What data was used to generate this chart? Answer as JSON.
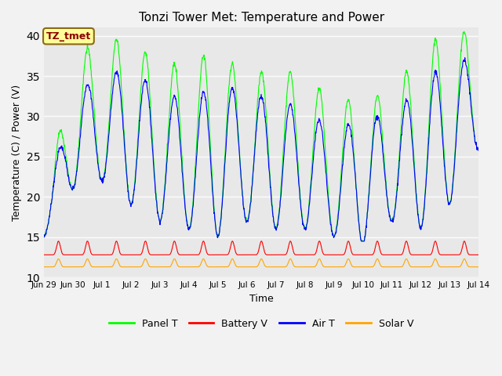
{
  "title": "Tonzi Tower Met: Temperature and Power",
  "xlabel": "Time",
  "ylabel": "Temperature (C) / Power (V)",
  "ylim": [
    10,
    41
  ],
  "yticks": [
    10,
    15,
    20,
    25,
    30,
    35,
    40
  ],
  "annotation_text": "TZ_tmet",
  "annotation_color": "#8B0000",
  "annotation_bg": "#FFFF99",
  "panel_t_color": "#00FF00",
  "air_t_color": "#0000FF",
  "battery_v_color": "#FF0000",
  "solar_v_color": "#FFA500",
  "background_color": "#E8E8E8",
  "fig_color": "#F2F2F2",
  "n_days": 15,
  "points_per_day": 96,
  "title_fontsize": 11
}
